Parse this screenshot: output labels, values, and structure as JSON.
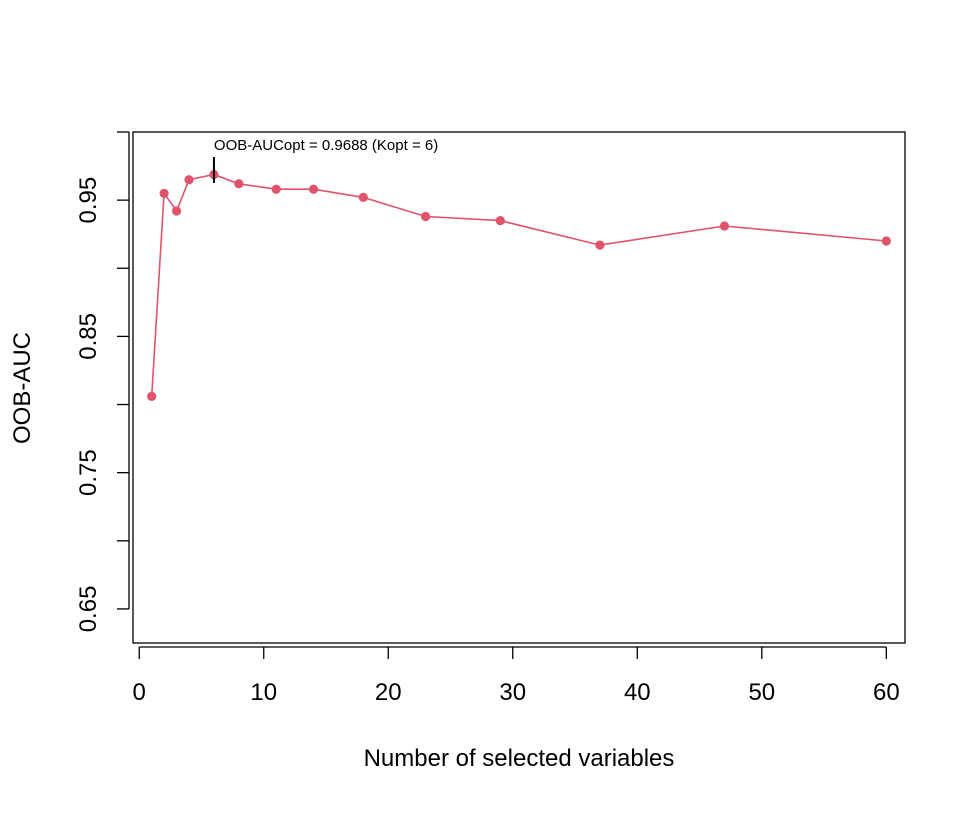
{
  "chart_data": {
    "type": "line",
    "title": "",
    "xlabel": "Number of selected variables",
    "ylabel": "OOB-AUC",
    "xlim": [
      -0.5,
      61.5
    ],
    "ylim": [
      0.625,
      1.0
    ],
    "x_ticks": [
      0,
      10,
      20,
      30,
      40,
      50,
      60
    ],
    "y_ticks": [
      0.65,
      0.7,
      0.75,
      0.8,
      0.85,
      0.9,
      0.95,
      1.0
    ],
    "y_tick_labels": [
      "0.65",
      "",
      "0.75",
      "",
      "0.85",
      "",
      "0.95",
      ""
    ],
    "grid": false,
    "series": [
      {
        "color": "#df536b",
        "x": [
          1,
          2,
          3,
          4,
          6,
          8,
          11,
          14,
          18,
          23,
          29,
          37,
          47,
          60
        ],
        "y": [
          0.806,
          0.955,
          0.942,
          0.965,
          0.9688,
          0.962,
          0.958,
          0.958,
          0.952,
          0.938,
          0.935,
          0.917,
          0.931,
          0.92
        ]
      }
    ],
    "annotation": {
      "text": "OOB-AUCopt = 0.9688 (Kopt = 6)",
      "x": 6,
      "y": 0.9688
    }
  }
}
